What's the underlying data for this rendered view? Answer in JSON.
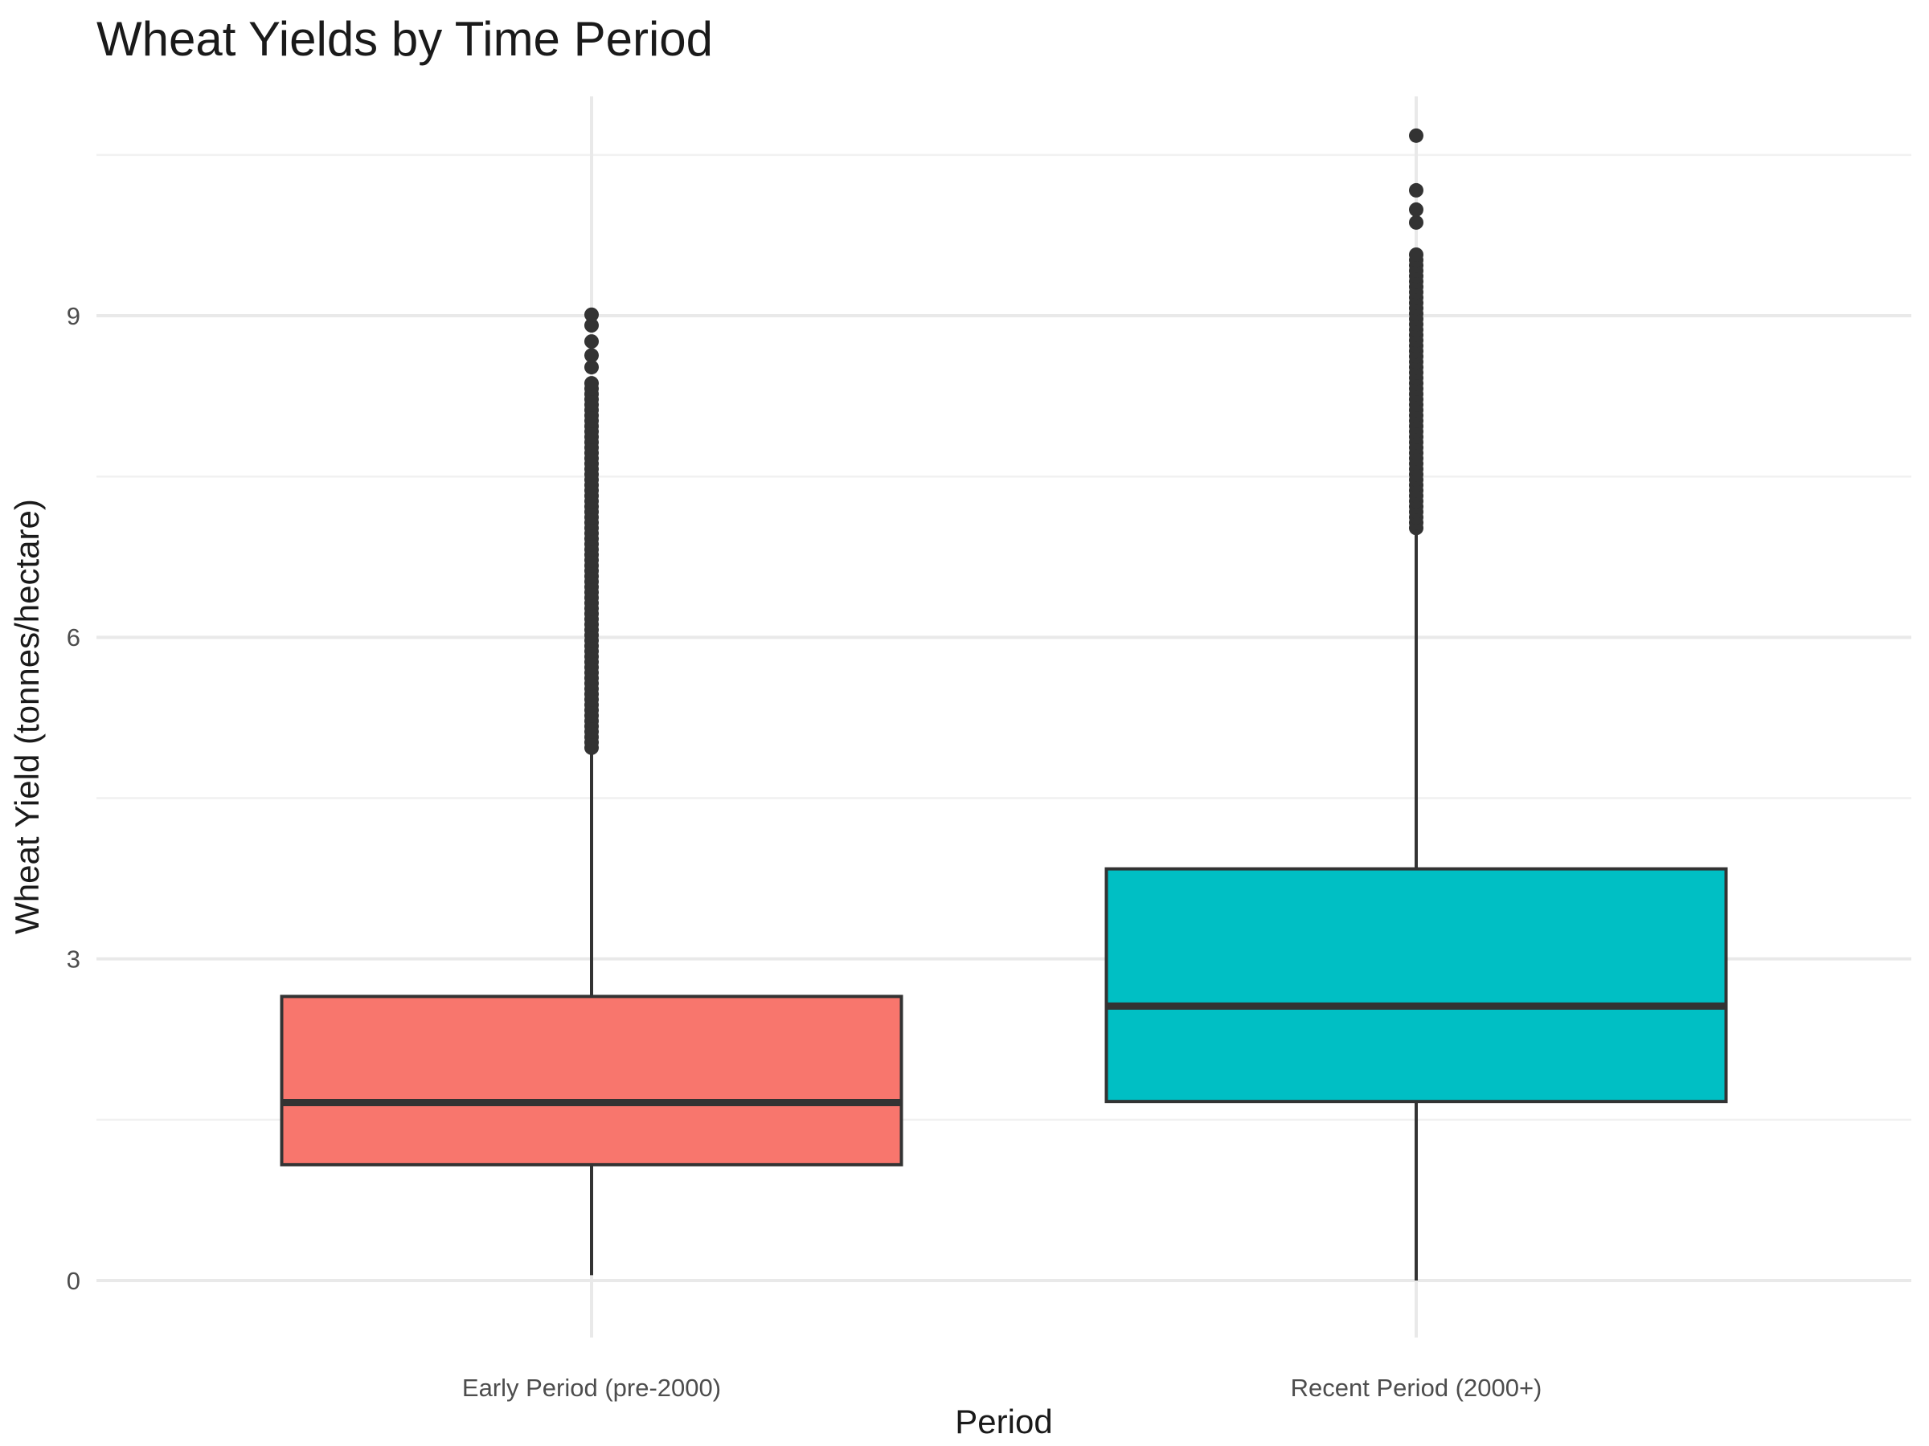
{
  "chart_data": {
    "type": "boxplot",
    "title": "Wheat Yields by Time Period",
    "xlabel": "Period",
    "ylabel": "Wheat Yield (tonnes/hectare)",
    "y_ticks": [
      0,
      3,
      6,
      9
    ],
    "y_minor_ticks": [
      1.5,
      4.5,
      7.5,
      10.5
    ],
    "ylim": [
      -0.5,
      11.05
    ],
    "grid": "on",
    "legend": "none",
    "categories": [
      "Early Period (pre-2000)",
      "Recent Period (2000+)"
    ],
    "series": [
      {
        "name": "Early Period (pre-2000)",
        "color": "#F8766D",
        "whisker_low": 0.05,
        "q1": 1.08,
        "median": 1.66,
        "q3": 2.65,
        "whisker_high": 4.95,
        "outlier_dense_range": {
          "from": 4.97,
          "to": 8.39,
          "step": 0.05
        },
        "outliers": [
          8.52,
          8.63,
          8.76,
          8.91,
          9.01
        ]
      },
      {
        "name": "Recent Period (2000+)",
        "color": "#00BFC4",
        "whisker_low": 0.0,
        "q1": 1.67,
        "median": 2.56,
        "q3": 3.84,
        "whisker_high": 7.0,
        "outlier_dense_range": {
          "from": 7.02,
          "to": 9.61,
          "step": 0.05
        },
        "outliers": [
          9.87,
          9.99,
          10.17,
          10.68
        ]
      }
    ],
    "style": {
      "box_stroke": "#333333",
      "outlier_color": "#333333",
      "grid_major_color": "#e9e9e9",
      "grid_minor_color": "#f1f1f1",
      "tick_label_color": "#4d4d4d",
      "title_color": "#1a1a1a",
      "background": "#ffffff"
    }
  }
}
